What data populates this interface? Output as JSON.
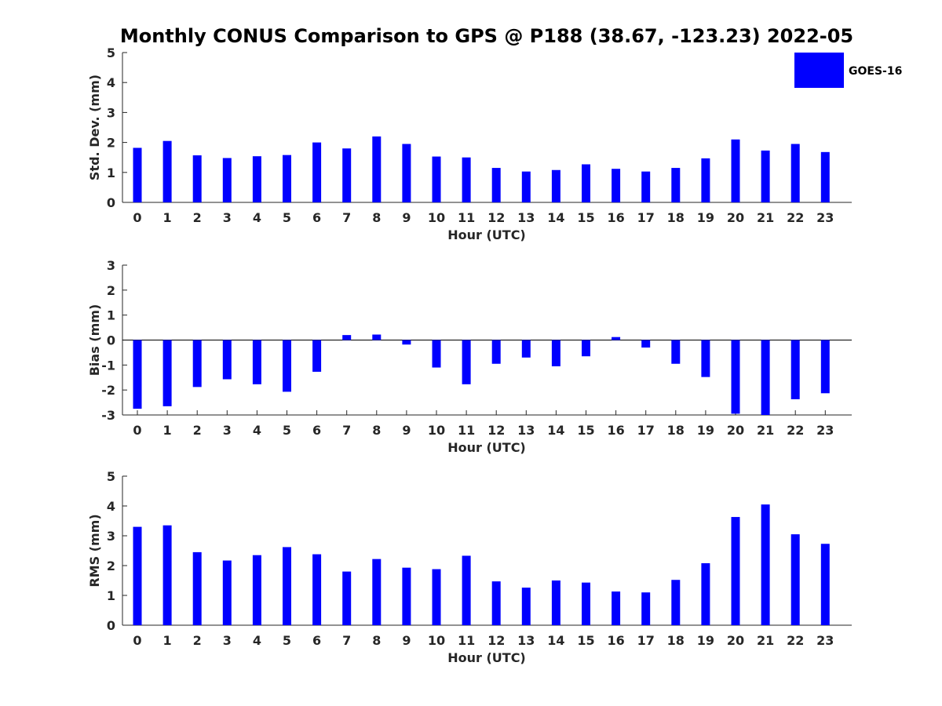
{
  "title": "Monthly CONUS Comparison to GPS @ P188 (38.67, -123.23) 2022-05",
  "legend": {
    "label": "GOES-16",
    "color": "#0000ff"
  },
  "chart_data": [
    {
      "type": "bar",
      "ylabel": "Std. Dev. (mm)",
      "xlabel": "Hour (UTC)",
      "ylim": [
        0,
        5
      ],
      "yticks": [
        0,
        1,
        2,
        3,
        4,
        5
      ],
      "categories": [
        "0",
        "1",
        "2",
        "3",
        "4",
        "5",
        "6",
        "7",
        "8",
        "9",
        "10",
        "11",
        "12",
        "13",
        "14",
        "15",
        "16",
        "17",
        "18",
        "19",
        "20",
        "21",
        "22",
        "23"
      ],
      "series": [
        {
          "name": "GOES-16",
          "values": [
            1.82,
            2.05,
            1.57,
            1.48,
            1.54,
            1.58,
            2.0,
            1.8,
            2.2,
            1.95,
            1.53,
            1.5,
            1.15,
            1.03,
            1.08,
            1.27,
            1.12,
            1.03,
            1.15,
            1.47,
            2.1,
            1.73,
            1.95,
            1.68
          ]
        }
      ]
    },
    {
      "type": "bar",
      "ylabel": "Bias (mm)",
      "xlabel": "Hour (UTC)",
      "ylim": [
        -3,
        3
      ],
      "yticks": [
        -3,
        -2,
        -1,
        0,
        1,
        2,
        3
      ],
      "categories": [
        "0",
        "1",
        "2",
        "3",
        "4",
        "5",
        "6",
        "7",
        "8",
        "9",
        "10",
        "11",
        "12",
        "13",
        "14",
        "15",
        "16",
        "17",
        "18",
        "19",
        "20",
        "21",
        "22",
        "23"
      ],
      "series": [
        {
          "name": "GOES-16",
          "values": [
            -2.75,
            -2.65,
            -1.88,
            -1.57,
            -1.77,
            -2.07,
            -1.27,
            0.2,
            0.22,
            -0.18,
            -1.1,
            -1.77,
            -0.95,
            -0.7,
            -1.05,
            -0.65,
            0.12,
            -0.3,
            -0.95,
            -1.48,
            -2.95,
            -3.0,
            -2.37,
            -2.13
          ]
        }
      ]
    },
    {
      "type": "bar",
      "ylabel": "RMS (mm)",
      "xlabel": "Hour (UTC)",
      "ylim": [
        0,
        5
      ],
      "yticks": [
        0,
        1,
        2,
        3,
        4,
        5
      ],
      "categories": [
        "0",
        "1",
        "2",
        "3",
        "4",
        "5",
        "6",
        "7",
        "8",
        "9",
        "10",
        "11",
        "12",
        "13",
        "14",
        "15",
        "16",
        "17",
        "18",
        "19",
        "20",
        "21",
        "22",
        "23"
      ],
      "series": [
        {
          "name": "GOES-16",
          "values": [
            3.3,
            3.35,
            2.45,
            2.17,
            2.35,
            2.62,
            2.38,
            1.8,
            2.22,
            1.93,
            1.88,
            2.33,
            1.47,
            1.26,
            1.5,
            1.43,
            1.13,
            1.1,
            1.52,
            2.08,
            3.63,
            4.05,
            3.05,
            2.73
          ]
        }
      ]
    }
  ]
}
